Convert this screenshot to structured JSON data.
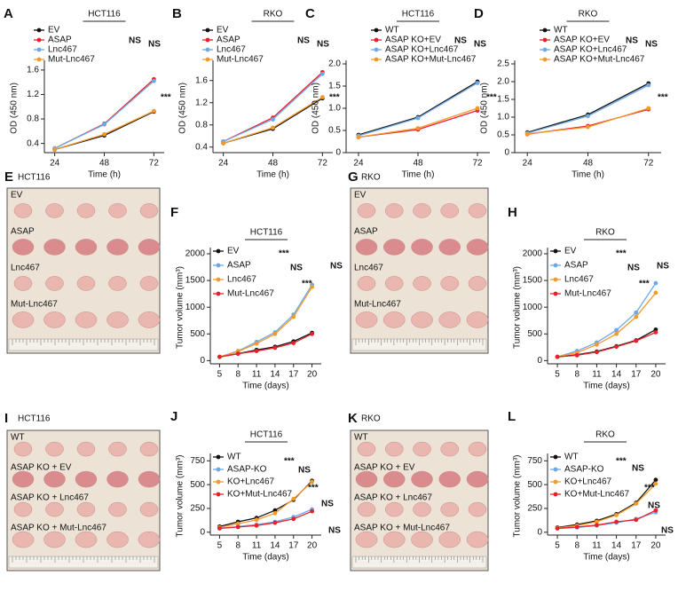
{
  "chart_data": [
    {
      "type": "line",
      "letter": "A",
      "title": "HCT116",
      "xlabel": "Time (h)",
      "ylabel": "OD (450 nm)",
      "x": [
        24,
        48,
        72
      ],
      "xlim": [
        19,
        77
      ],
      "xticks": [
        24,
        48,
        72
      ],
      "ylim": [
        0.25,
        1.7
      ],
      "yticks": [
        0.4,
        0.8,
        1.2,
        1.6
      ],
      "series": [
        {
          "name": "EV",
          "color": "#111111",
          "values": [
            0.3,
            0.53,
            0.92
          ]
        },
        {
          "name": "ASAP",
          "color": "#e8202a",
          "values": [
            0.32,
            0.72,
            1.45
          ]
        },
        {
          "name": "Lnc467",
          "color": "#6fa8e8",
          "values": [
            0.32,
            0.71,
            1.42
          ]
        },
        {
          "name": "Mut-Lnc467",
          "color": "#f39a2b",
          "values": [
            0.3,
            0.55,
            0.93
          ]
        }
      ],
      "annotations": [
        "NS",
        "NS",
        "***"
      ]
    },
    {
      "type": "line",
      "letter": "B",
      "title": "RKO",
      "xlabel": "Time (h)",
      "ylabel": "OD (450 nm)",
      "x": [
        24,
        48,
        72
      ],
      "xlim": [
        19,
        77
      ],
      "xticks": [
        24,
        48,
        72
      ],
      "ylim": [
        0.3,
        1.9
      ],
      "yticks": [
        0.4,
        0.8,
        1.2,
        1.6
      ],
      "series": [
        {
          "name": "EV",
          "color": "#111111",
          "values": [
            0.47,
            0.73,
            1.28
          ]
        },
        {
          "name": "ASAP",
          "color": "#e8202a",
          "values": [
            0.5,
            0.93,
            1.75
          ]
        },
        {
          "name": "Lnc467",
          "color": "#6fa8e8",
          "values": [
            0.5,
            0.9,
            1.72
          ]
        },
        {
          "name": "Mut-Lnc467",
          "color": "#f39a2b",
          "values": [
            0.47,
            0.75,
            1.3
          ]
        }
      ],
      "annotations": [
        "NS",
        "NS",
        "***"
      ]
    },
    {
      "type": "line",
      "letter": "C",
      "title": "HCT116",
      "xlabel": "Time (h)",
      "ylabel": "OD (450 nm)",
      "x": [
        24,
        48,
        72
      ],
      "xlim": [
        19,
        77
      ],
      "xticks": [
        24,
        48,
        72
      ],
      "ylim": [
        0,
        2
      ],
      "yticks": [
        0,
        0.5,
        {
          "value": 1,
          "label": "1.0"
        },
        1.5,
        {
          "value": 2,
          "label": "2.0"
        }
      ],
      "series": [
        {
          "name": "WT",
          "color": "#111111",
          "values": [
            0.4,
            0.8,
            1.6
          ]
        },
        {
          "name": "ASAP KO+EV",
          "color": "#e8202a",
          "values": [
            0.35,
            0.52,
            0.95
          ]
        },
        {
          "name": "ASAP KO+Lnc467",
          "color": "#6fa8e8",
          "values": [
            0.38,
            0.78,
            1.57
          ]
        },
        {
          "name": "ASAP KO+Mut-Lnc467",
          "color": "#f39a2b",
          "values": [
            0.35,
            0.55,
            1.0
          ]
        }
      ],
      "annotations": [
        "NS",
        "NS",
        "***"
      ]
    },
    {
      "type": "line",
      "letter": "D",
      "title": "RKO",
      "xlabel": "Time (h)",
      "ylabel": "OD (450 nm)",
      "x": [
        24,
        48,
        72
      ],
      "xlim": [
        19,
        77
      ],
      "xticks": [
        24,
        48,
        72
      ],
      "ylim": [
        0,
        2.5
      ],
      "yticks": [
        0,
        0.5,
        {
          "value": 1,
          "label": "1.0"
        },
        1.5,
        {
          "value": 2,
          "label": "2.0"
        },
        2.5
      ],
      "series": [
        {
          "name": "WT",
          "color": "#111111",
          "values": [
            0.57,
            1.07,
            1.95
          ]
        },
        {
          "name": "ASAP KO+EV",
          "color": "#e8202a",
          "values": [
            0.52,
            0.75,
            1.22
          ]
        },
        {
          "name": "ASAP KO+Lnc467",
          "color": "#6fa8e8",
          "values": [
            0.55,
            1.03,
            1.9
          ]
        },
        {
          "name": "ASAP KO+Mut-Lnc467",
          "color": "#f39a2b",
          "values": [
            0.53,
            0.72,
            1.25
          ]
        }
      ],
      "annotations": [
        "NS",
        "NS",
        "***"
      ]
    },
    {
      "type": "line",
      "letter": "F",
      "title": "HCT116",
      "xlabel": "Time (days)",
      "ylabel": "Tumor volume (mm³)",
      "x": [
        5,
        8,
        11,
        14,
        17,
        20
      ],
      "xlim": [
        3.5,
        21.5
      ],
      "xticks": [
        5,
        8,
        11,
        14,
        17,
        20
      ],
      "ylim": [
        -60,
        2050
      ],
      "yticks": [
        0,
        500,
        1000,
        1500,
        2000
      ],
      "series": [
        {
          "name": "EV",
          "color": "#111111",
          "values": [
            70,
            130,
            200,
            260,
            360,
            520
          ]
        },
        {
          "name": "ASAP",
          "color": "#6fa8e8",
          "values": [
            70,
            180,
            350,
            530,
            860,
            1420
          ]
        },
        {
          "name": "Lnc467",
          "color": "#f39a2b",
          "values": [
            70,
            170,
            320,
            500,
            820,
            1380
          ]
        },
        {
          "name": "Mut-Lnc467",
          "color": "#e8202a",
          "values": [
            70,
            130,
            180,
            240,
            330,
            500
          ]
        }
      ],
      "annotations": [
        "***",
        "NS",
        "***",
        "NS"
      ]
    },
    {
      "type": "line",
      "letter": "H",
      "title": "RKO",
      "xlabel": "Time (days)",
      "ylabel": "Tumor volume (mm³)",
      "x": [
        5,
        8,
        11,
        14,
        17,
        20
      ],
      "xlim": [
        3.5,
        21.5
      ],
      "xticks": [
        5,
        8,
        11,
        14,
        17,
        20
      ],
      "ylim": [
        -60,
        2050
      ],
      "yticks": [
        0,
        500,
        1000,
        1500,
        2000
      ],
      "series": [
        {
          "name": "EV",
          "color": "#111111",
          "values": [
            70,
            110,
            170,
            270,
            380,
            580
          ]
        },
        {
          "name": "ASAP",
          "color": "#6fa8e8",
          "values": [
            70,
            180,
            340,
            570,
            900,
            1450
          ]
        },
        {
          "name": "Lnc467",
          "color": "#f39a2b",
          "values": [
            70,
            150,
            300,
            500,
            820,
            1270
          ]
        },
        {
          "name": "Mut-Lnc467",
          "color": "#e8202a",
          "values": [
            70,
            100,
            160,
            260,
            370,
            530
          ]
        }
      ],
      "annotations": [
        "***",
        "NS",
        "***",
        "NS"
      ]
    },
    {
      "type": "line",
      "letter": "J",
      "title": "HCT116",
      "xlabel": "Time (days)",
      "ylabel": "Tumor volume (mm³)",
      "x": [
        5,
        8,
        11,
        14,
        17,
        20
      ],
      "xlim": [
        3.5,
        21.5
      ],
      "xticks": [
        5,
        8,
        11,
        14,
        17,
        20
      ],
      "ylim": [
        -30,
        790
      ],
      "yticks": [
        0,
        250,
        500,
        750
      ],
      "series": [
        {
          "name": "WT",
          "color": "#111111",
          "values": [
            60,
            110,
            150,
            230,
            340,
            540
          ]
        },
        {
          "name": "ASAP-KO",
          "color": "#6fa8e8",
          "values": [
            40,
            60,
            80,
            110,
            160,
            240
          ]
        },
        {
          "name": "KO+Lnc467",
          "color": "#f39a2b",
          "values": [
            50,
            90,
            130,
            200,
            350,
            530
          ]
        },
        {
          "name": "KO+Mut-Lnc467",
          "color": "#e8202a",
          "values": [
            40,
            55,
            70,
            100,
            140,
            220
          ]
        }
      ],
      "annotations": [
        "***",
        "NS",
        "***",
        "NS",
        "NS"
      ]
    },
    {
      "type": "line",
      "letter": "L",
      "title": "RKO",
      "xlabel": "Time (days)",
      "ylabel": "Tumor volume (mm³)",
      "x": [
        5,
        8,
        11,
        14,
        17,
        20
      ],
      "xlim": [
        3.5,
        21.5
      ],
      "xticks": [
        5,
        8,
        11,
        14,
        17,
        20
      ],
      "ylim": [
        -30,
        790
      ],
      "yticks": [
        0,
        250,
        500,
        750
      ],
      "series": [
        {
          "name": "WT",
          "color": "#111111",
          "values": [
            50,
            80,
            120,
            190,
            310,
            550
          ]
        },
        {
          "name": "ASAP-KO",
          "color": "#6fa8e8",
          "values": [
            40,
            50,
            70,
            100,
            140,
            210
          ]
        },
        {
          "name": "KO+Lnc467",
          "color": "#f39a2b",
          "values": [
            45,
            70,
            110,
            180,
            300,
            510
          ]
        },
        {
          "name": "KO+Mut-Lnc467",
          "color": "#e8202a",
          "values": [
            40,
            55,
            75,
            110,
            130,
            230
          ]
        }
      ],
      "annotations": [
        "***",
        "NS",
        "***",
        "NS",
        "NS"
      ]
    }
  ],
  "photos": [
    {
      "letter": "E",
      "title": "HCT116",
      "rows": [
        "EV",
        "ASAP",
        "Lnc467",
        "Mut-Lnc467"
      ]
    },
    {
      "letter": "G",
      "title": "RKO",
      "rows": [
        "EV",
        "ASAP",
        "Lnc467",
        "Mut-Lnc467"
      ]
    },
    {
      "letter": "I",
      "title": "HCT116",
      "rows": [
        "WT",
        "ASAP KO + EV",
        "ASAP KO + Lnc467",
        "ASAP KO + Mut-Lnc467"
      ]
    },
    {
      "letter": "K",
      "title": "RKO",
      "rows": [
        "WT",
        "ASAP KO + EV",
        "ASAP KO + Lnc467",
        "ASAP KO + Mut-Lnc467"
      ]
    }
  ]
}
